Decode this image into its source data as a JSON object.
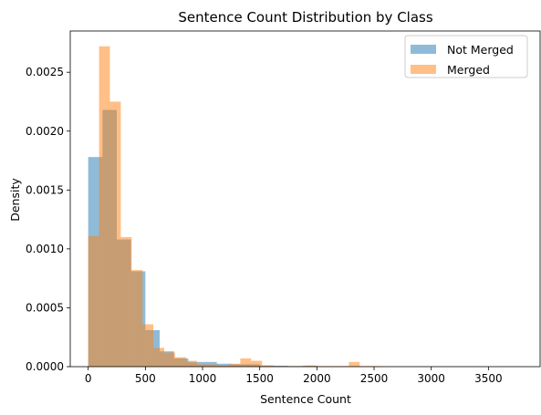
{
  "chart_data": {
    "type": "histogram",
    "title": "Sentence Count Distribution by Class",
    "xlabel": "Sentence Count",
    "ylabel": "Density",
    "xlim": [
      -157,
      3952
    ],
    "ylim": [
      0,
      0.00285
    ],
    "xticks": [
      0,
      500,
      1000,
      1500,
      2000,
      2500,
      3000,
      3500
    ],
    "xtick_labels": [
      "0",
      "500",
      "1000",
      "1500",
      "2000",
      "2500",
      "3000",
      "3500"
    ],
    "yticks": [
      0,
      0.0005,
      0.001,
      0.0015,
      0.002,
      0.0025
    ],
    "ytick_labels": [
      "0.0000",
      "0.0005",
      "0.0010",
      "0.0015",
      "0.0020",
      "0.0025"
    ],
    "legend_position": "upper right",
    "series": [
      {
        "name": "Not Merged",
        "color": "#1f77b4",
        "alpha": 0.5,
        "bin_start": 0,
        "bin_width": 125,
        "values": [
          0.00178,
          0.00218,
          0.00108,
          0.00081,
          0.00031,
          0.00013,
          7e-05,
          4e-05,
          4e-05,
          2.5e-05,
          2e-05,
          2e-05,
          1e-05,
          8e-06,
          5e-06,
          8e-06,
          3e-06,
          3e-06,
          3e-06,
          3e-06
        ]
      },
      {
        "name": "Merged",
        "color": "#ff7f0e",
        "alpha": 0.5,
        "bin_start": 0,
        "bin_width": 95,
        "values": [
          0.00111,
          0.00272,
          0.00225,
          0.0011,
          0.00082,
          0.00036,
          0.00016,
          0.00012,
          8e-05,
          5e-05,
          2e-05,
          2e-05,
          1e-05,
          2.5e-05,
          7e-05,
          5e-05,
          1e-05,
          5e-06,
          5e-06,
          5e-06,
          1e-05,
          5e-06,
          5e-06,
          5e-06,
          4e-05,
          5e-06,
          5e-06,
          3e-06,
          3e-06,
          3e-06,
          3e-06,
          3e-06,
          3e-06,
          3e-06,
          3e-06,
          3e-06,
          3e-06,
          3e-06,
          3e-06,
          3e-06
        ]
      }
    ]
  }
}
